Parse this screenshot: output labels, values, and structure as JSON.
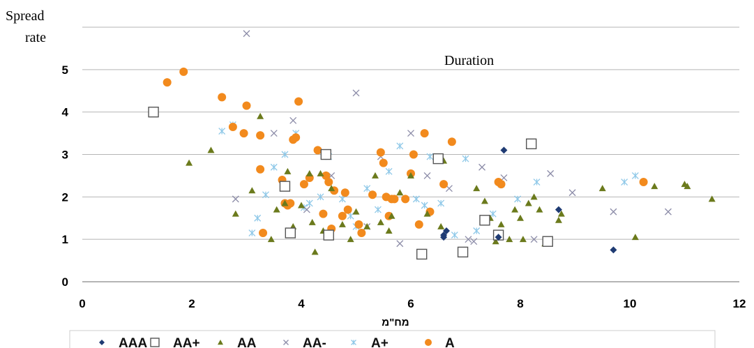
{
  "chart_data": {
    "type": "scatter",
    "ylabel_line1": "Spread",
    "ylabel_line2": "rate",
    "annotation": "Duration",
    "xlabel": "מח\"מ",
    "xlim": [
      0,
      12
    ],
    "ylim": [
      0,
      6
    ],
    "xticks": [
      "0",
      "2",
      "4",
      "6",
      "8",
      "10",
      "12"
    ],
    "yticks": [
      "0",
      "1",
      "2",
      "3",
      "4",
      "5"
    ],
    "grid": true,
    "legend_position": "bottom",
    "series": [
      {
        "name": "AAA",
        "marker": "diamond",
        "color": "#1f3b73",
        "points": [
          [
            6.6,
            1.1
          ],
          [
            6.65,
            1.2
          ],
          [
            6.6,
            1.05
          ],
          [
            7.7,
            3.1
          ],
          [
            8.7,
            1.7
          ],
          [
            9.7,
            0.75
          ],
          [
            7.6,
            1.05
          ]
        ]
      },
      {
        "name": "AA+",
        "marker": "square-open",
        "color": "#555555",
        "points": [
          [
            1.3,
            4.0
          ],
          [
            3.7,
            2.25
          ],
          [
            3.8,
            1.15
          ],
          [
            4.45,
            3.0
          ],
          [
            4.5,
            1.1
          ],
          [
            6.2,
            0.65
          ],
          [
            6.5,
            2.9
          ],
          [
            6.95,
            0.7
          ],
          [
            7.35,
            1.45
          ],
          [
            7.6,
            1.1
          ],
          [
            8.2,
            3.25
          ],
          [
            8.5,
            0.95
          ]
        ]
      },
      {
        "name": "AA",
        "marker": "triangle",
        "color": "#6b7a1c",
        "points": [
          [
            1.95,
            2.8
          ],
          [
            2.35,
            3.1
          ],
          [
            2.8,
            1.6
          ],
          [
            3.1,
            2.15
          ],
          [
            3.25,
            3.9
          ],
          [
            3.45,
            1.0
          ],
          [
            3.55,
            1.7
          ],
          [
            3.7,
            1.85
          ],
          [
            3.75,
            2.6
          ],
          [
            3.85,
            1.3
          ],
          [
            4.0,
            1.8
          ],
          [
            4.15,
            2.55
          ],
          [
            4.2,
            1.4
          ],
          [
            4.25,
            0.7
          ],
          [
            4.35,
            2.55
          ],
          [
            4.4,
            1.2
          ],
          [
            4.55,
            2.2
          ],
          [
            4.75,
            1.35
          ],
          [
            4.9,
            1.0
          ],
          [
            5.0,
            1.65
          ],
          [
            5.2,
            1.3
          ],
          [
            5.35,
            2.5
          ],
          [
            5.45,
            1.4
          ],
          [
            5.6,
            1.2
          ],
          [
            5.65,
            1.55
          ],
          [
            5.8,
            2.1
          ],
          [
            6.0,
            2.5
          ],
          [
            6.3,
            1.6
          ],
          [
            6.55,
            1.3
          ],
          [
            6.6,
            2.85
          ],
          [
            7.2,
            2.2
          ],
          [
            7.35,
            1.9
          ],
          [
            7.45,
            1.5
          ],
          [
            7.55,
            0.95
          ],
          [
            7.65,
            1.35
          ],
          [
            7.8,
            1.0
          ],
          [
            7.9,
            1.7
          ],
          [
            8.0,
            1.5
          ],
          [
            8.05,
            1.0
          ],
          [
            8.15,
            1.85
          ],
          [
            8.25,
            2.0
          ],
          [
            8.35,
            1.7
          ],
          [
            8.45,
            0.9
          ],
          [
            8.7,
            1.45
          ],
          [
            8.75,
            1.6
          ],
          [
            9.5,
            2.2
          ],
          [
            10.1,
            1.05
          ],
          [
            10.45,
            2.25
          ],
          [
            11.0,
            2.3
          ],
          [
            11.05,
            2.25
          ],
          [
            11.5,
            1.95
          ]
        ]
      },
      {
        "name": "AA-",
        "marker": "x",
        "color": "#8c8ca8",
        "points": [
          [
            2.8,
            1.95
          ],
          [
            3.0,
            5.85
          ],
          [
            3.5,
            3.5
          ],
          [
            3.85,
            3.8
          ],
          [
            4.1,
            1.7
          ],
          [
            4.55,
            2.5
          ],
          [
            5.0,
            4.45
          ],
          [
            5.2,
            1.3
          ],
          [
            5.45,
            2.95
          ],
          [
            5.8,
            0.9
          ],
          [
            6.0,
            3.5
          ],
          [
            6.3,
            2.5
          ],
          [
            6.7,
            2.2
          ],
          [
            7.05,
            1.0
          ],
          [
            7.15,
            0.95
          ],
          [
            7.3,
            2.7
          ],
          [
            7.7,
            2.45
          ],
          [
            8.25,
            1.0
          ],
          [
            8.55,
            2.55
          ],
          [
            8.95,
            2.1
          ],
          [
            9.7,
            1.65
          ],
          [
            10.7,
            1.65
          ]
        ]
      },
      {
        "name": "A+",
        "marker": "cross",
        "color": "#8ec8e8",
        "points": [
          [
            2.55,
            3.55
          ],
          [
            2.75,
            3.7
          ],
          [
            3.1,
            1.15
          ],
          [
            3.2,
            1.5
          ],
          [
            3.35,
            2.05
          ],
          [
            3.5,
            2.7
          ],
          [
            3.7,
            3.0
          ],
          [
            3.9,
            3.5
          ],
          [
            4.05,
            1.75
          ],
          [
            4.15,
            1.85
          ],
          [
            4.35,
            2.0
          ],
          [
            4.5,
            2.95
          ],
          [
            4.75,
            1.95
          ],
          [
            4.9,
            1.55
          ],
          [
            5.0,
            1.3
          ],
          [
            5.2,
            2.2
          ],
          [
            5.4,
            1.7
          ],
          [
            5.6,
            2.6
          ],
          [
            5.8,
            3.2
          ],
          [
            6.1,
            1.95
          ],
          [
            6.25,
            1.8
          ],
          [
            6.35,
            2.95
          ],
          [
            6.55,
            1.85
          ],
          [
            6.8,
            1.1
          ],
          [
            7.0,
            2.9
          ],
          [
            7.2,
            1.2
          ],
          [
            7.5,
            1.6
          ],
          [
            7.65,
            2.3
          ],
          [
            7.95,
            1.95
          ],
          [
            8.3,
            2.35
          ],
          [
            9.9,
            2.35
          ],
          [
            10.1,
            2.5
          ]
        ]
      },
      {
        "name": "A",
        "marker": "circle",
        "color": "#f28a1d",
        "points": [
          [
            1.55,
            4.7
          ],
          [
            1.85,
            4.95
          ],
          [
            2.55,
            4.35
          ],
          [
            2.75,
            3.65
          ],
          [
            2.95,
            3.5
          ],
          [
            3.0,
            4.15
          ],
          [
            3.25,
            3.45
          ],
          [
            3.25,
            2.65
          ],
          [
            3.3,
            1.15
          ],
          [
            3.65,
            2.4
          ],
          [
            3.7,
            1.85
          ],
          [
            3.75,
            1.8
          ],
          [
            3.8,
            1.85
          ],
          [
            3.85,
            3.35
          ],
          [
            3.9,
            3.4
          ],
          [
            3.95,
            4.25
          ],
          [
            4.05,
            2.3
          ],
          [
            4.15,
            2.45
          ],
          [
            4.3,
            3.1
          ],
          [
            4.4,
            1.6
          ],
          [
            4.45,
            2.5
          ],
          [
            4.5,
            2.35
          ],
          [
            4.55,
            1.25
          ],
          [
            4.6,
            2.15
          ],
          [
            4.75,
            1.55
          ],
          [
            4.8,
            2.1
          ],
          [
            4.85,
            1.7
          ],
          [
            5.05,
            1.35
          ],
          [
            5.1,
            1.15
          ],
          [
            5.3,
            2.05
          ],
          [
            5.45,
            3.05
          ],
          [
            5.5,
            2.8
          ],
          [
            5.55,
            2.0
          ],
          [
            5.6,
            1.55
          ],
          [
            5.65,
            1.95
          ],
          [
            5.7,
            1.95
          ],
          [
            5.9,
            1.95
          ],
          [
            6.0,
            2.55
          ],
          [
            6.05,
            3.0
          ],
          [
            6.15,
            1.35
          ],
          [
            6.25,
            3.5
          ],
          [
            6.35,
            1.65
          ],
          [
            6.6,
            2.3
          ],
          [
            6.75,
            3.3
          ],
          [
            7.6,
            2.35
          ],
          [
            7.65,
            2.3
          ],
          [
            10.25,
            2.35
          ]
        ]
      }
    ]
  }
}
